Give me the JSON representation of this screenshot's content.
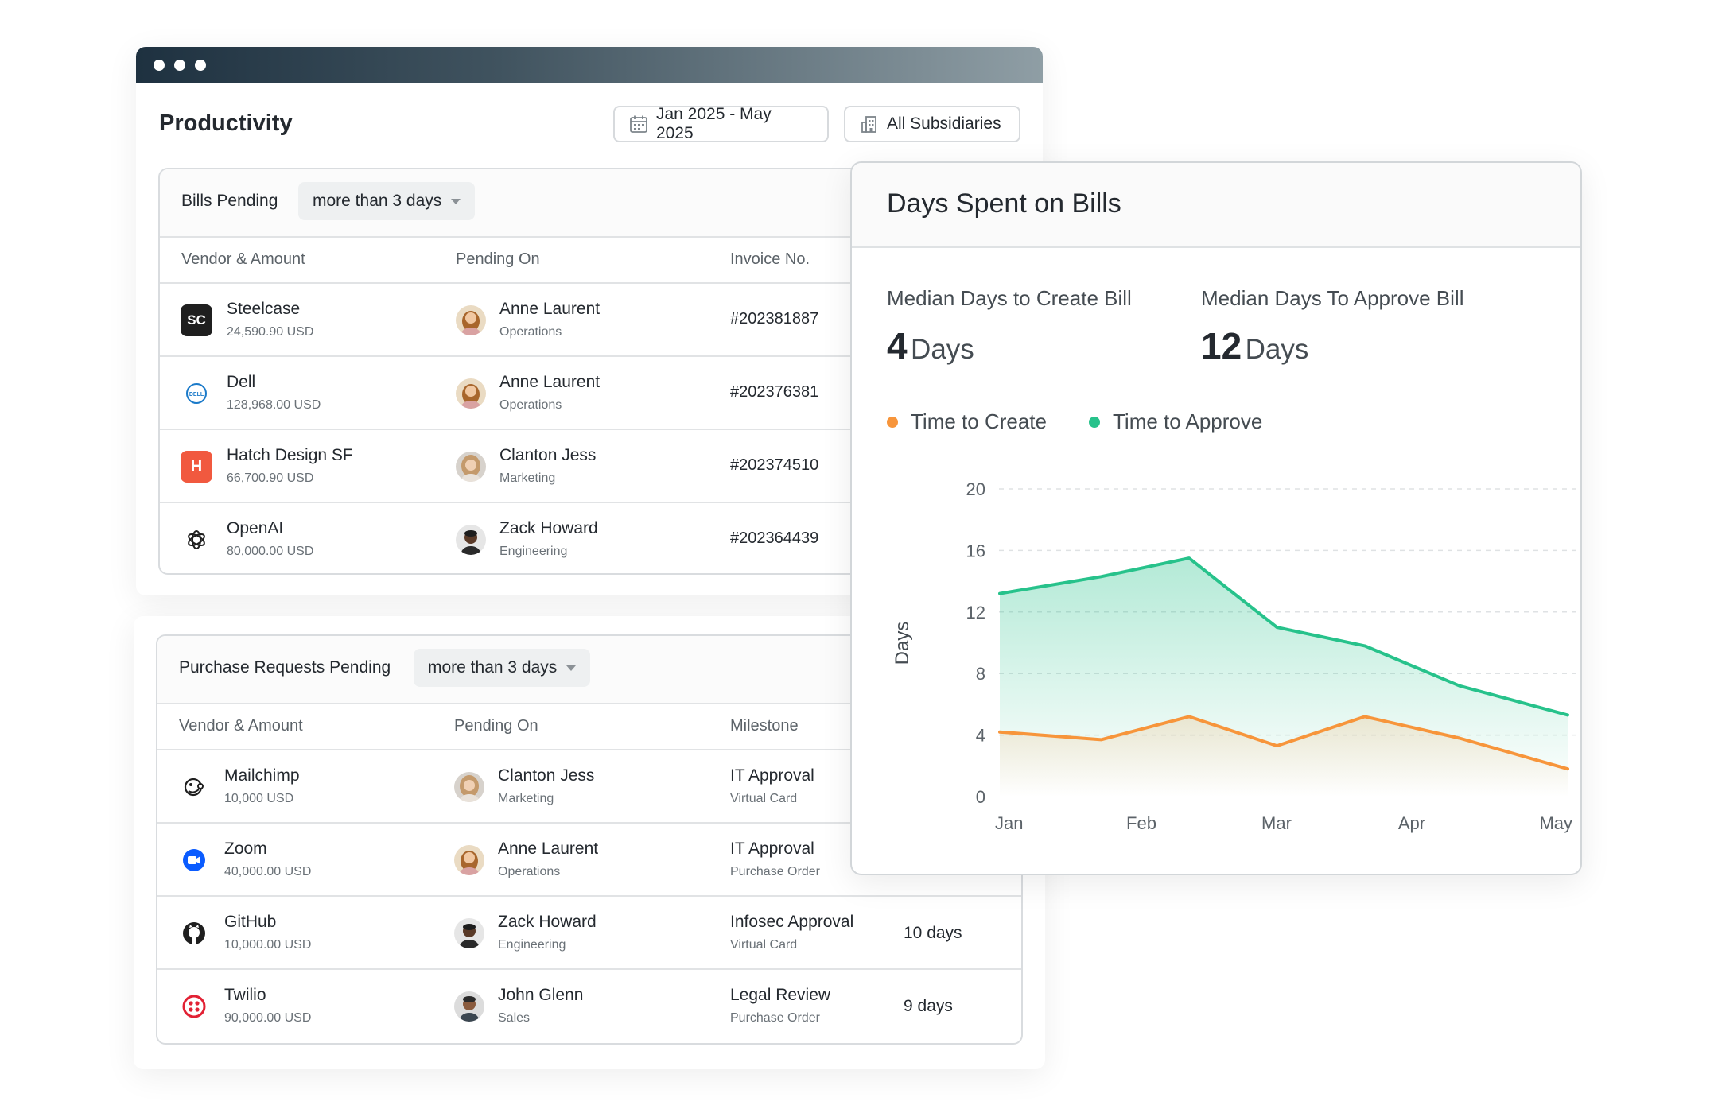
{
  "header": {
    "title": "Productivity",
    "date_range": "Jan 2025 - May 2025",
    "subsidiary": "All Subsidiaries"
  },
  "bills": {
    "title": "Bills Pending",
    "filter": "more than 3 days",
    "columns": [
      "Vendor & Amount",
      "Pending On",
      "Invoice No."
    ],
    "rows": [
      {
        "vendor": "Steelcase",
        "amount": "24,590.90 USD",
        "person": "Anne Laurent",
        "dept": "Operations",
        "invoice": "#202381887",
        "logo_text": "SC"
      },
      {
        "vendor": "Dell",
        "amount": "128,968.00 USD",
        "person": "Anne Laurent",
        "dept": "Operations",
        "invoice": "#202376381",
        "logo_text": "DELL"
      },
      {
        "vendor": "Hatch Design SF",
        "amount": "66,700.90 USD",
        "person": "Clanton Jess",
        "dept": "Marketing",
        "invoice": "#202374510",
        "logo_text": "H"
      },
      {
        "vendor": "OpenAI",
        "amount": "80,000.00 USD",
        "person": "Zack Howard",
        "dept": "Engineering",
        "invoice": "#202364439",
        "logo_text": ""
      }
    ]
  },
  "purchases": {
    "title": "Purchase Requests Pending",
    "filter": "more than 3 days",
    "columns": [
      "Vendor & Amount",
      "Pending On",
      "Milestone"
    ],
    "rows": [
      {
        "vendor": "Mailchimp",
        "amount": "10,000 USD",
        "person": "Clanton Jess",
        "dept": "Marketing",
        "milestone": "IT Approval",
        "milestone_sub": "Virtual Card",
        "days": ""
      },
      {
        "vendor": "Zoom",
        "amount": "40,000.00 USD",
        "person": "Anne Laurent",
        "dept": "Operations",
        "milestone": "IT Approval",
        "milestone_sub": "Purchase Order",
        "days": ""
      },
      {
        "vendor": "GitHub",
        "amount": "10,000.00 USD",
        "person": "Zack Howard",
        "dept": "Engineering",
        "milestone": "Infosec Approval",
        "milestone_sub": "Virtual Card",
        "days": "10 days"
      },
      {
        "vendor": "Twilio",
        "amount": "90,000.00 USD",
        "person": "John Glenn",
        "dept": "Sales",
        "milestone": "Legal Review",
        "milestone_sub": "Purchase Order",
        "days": "9 days"
      }
    ]
  },
  "panel": {
    "title": "Days Spent on Bills",
    "metric_create_label": "Median Days to Create Bill",
    "metric_create_value": "4",
    "metric_approve_label": "Median Days To Approve Bill",
    "metric_approve_value": "12",
    "unit": "Days"
  },
  "chart_data": {
    "type": "area",
    "x": [
      "Jan",
      "Feb",
      "Mar",
      "Apr",
      "May"
    ],
    "ylabel": "Days",
    "ylim": [
      0,
      20
    ],
    "yticks": [
      "0",
      "4",
      "8",
      "12",
      "16",
      "20"
    ],
    "grid": true,
    "legend": "top-left",
    "series": [
      {
        "name": "Time to Create",
        "color": "#f7953b",
        "points": [
          [
            0,
            4.2
          ],
          [
            0.75,
            3.7
          ],
          [
            1.4,
            5.2
          ],
          [
            2.05,
            3.3
          ],
          [
            2.7,
            5.2
          ],
          [
            3.4,
            3.8
          ],
          [
            4.2,
            1.8
          ]
        ]
      },
      {
        "name": "Time to Approve",
        "color": "#27c28b",
        "points": [
          [
            0,
            13.2
          ],
          [
            0.75,
            14.3
          ],
          [
            1.4,
            15.5
          ],
          [
            2.05,
            11.0
          ],
          [
            2.7,
            9.8
          ],
          [
            3.4,
            7.2
          ],
          [
            4.2,
            5.3
          ]
        ]
      }
    ]
  }
}
